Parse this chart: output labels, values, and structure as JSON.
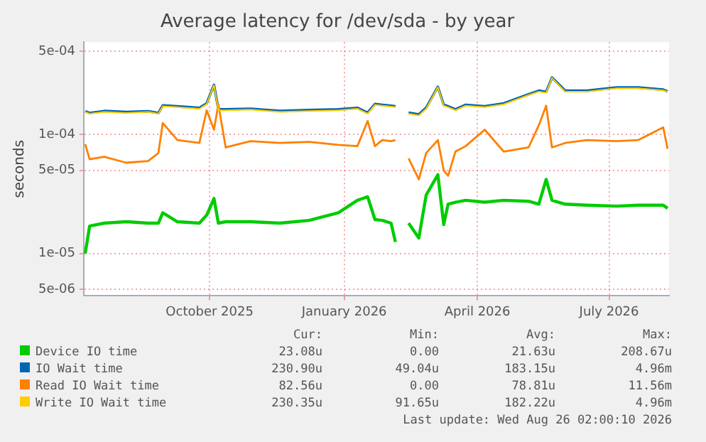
{
  "chart_data": {
    "type": "line",
    "title": "Average latency for /dev/sda - by year",
    "ylabel": "seconds",
    "log": "y",
    "grid": true,
    "legend": "bottom",
    "line_style": "solid",
    "xlim": [
      "2025-07-22",
      "2026-08-26"
    ],
    "xticks": [
      {
        "value": "2025-10-16",
        "label": "October 2025"
      },
      {
        "value": "2026-01-16",
        "label": "January 2026"
      },
      {
        "value": "2026-04-17",
        "label": "April 2026"
      },
      {
        "value": "2026-07-16",
        "label": "July 2026"
      }
    ],
    "ylim": [
      4.4e-06,
      0.0006
    ],
    "yticks": [
      {
        "value": 5e-06,
        "label": "5e-06"
      },
      {
        "value": 1e-05,
        "label": "1e-05"
      },
      {
        "value": 5e-05,
        "label": "5e-05"
      },
      {
        "value": 0.0001,
        "label": "1e-04"
      },
      {
        "value": 0.0005,
        "label": "5e-04"
      }
    ],
    "x": [
      "2025-07-23",
      "2025-07-26",
      "2025-08-05",
      "2025-08-20",
      "2025-09-04",
      "2025-09-11",
      "2025-09-14",
      "2025-09-24",
      "2025-10-09",
      "2025-10-14",
      "2025-10-19",
      "2025-10-22",
      "2025-10-27",
      "2025-11-13",
      "2025-12-03",
      "2025-12-23",
      "2026-01-12",
      "2026-01-25",
      "2026-02-01",
      "2026-02-06",
      "2026-02-11",
      "2026-02-17",
      "2026-02-20",
      "2026-02-24",
      "2026-03-01",
      "2026-03-08",
      "2026-03-13",
      "2026-03-21",
      "2026-03-25",
      "2026-03-28",
      "2026-04-02",
      "2026-04-09",
      "2026-04-22",
      "2026-05-05",
      "2026-05-22",
      "2026-05-29",
      "2026-06-03",
      "2026-06-07",
      "2026-06-16",
      "2026-07-01",
      "2026-07-21",
      "2026-08-05",
      "2026-08-22",
      "2026-08-25"
    ],
    "series": [
      {
        "name": "Device IO time",
        "color": "#00cc00",
        "values": [
          1e-05,
          1.7e-05,
          1.8e-05,
          1.85e-05,
          1.8e-05,
          1.8e-05,
          2.2e-05,
          1.85e-05,
          1.8e-05,
          2.1e-05,
          2.9e-05,
          1.8e-05,
          1.85e-05,
          1.85e-05,
          1.8e-05,
          1.9e-05,
          2.2e-05,
          2.8e-05,
          3e-05,
          1.93e-05,
          1.9e-05,
          1.8e-05,
          1.25e-05,
          null,
          1.8e-05,
          1.35e-05,
          3.1e-05,
          4.6e-05,
          1.75e-05,
          2.6e-05,
          2.7e-05,
          2.8e-05,
          2.7e-05,
          2.8e-05,
          2.75e-05,
          2.6e-05,
          4.2e-05,
          2.8e-05,
          2.6e-05,
          2.55e-05,
          2.5e-05,
          2.55e-05,
          2.55e-05,
          2.4e-05
        ]
      },
      {
        "name": "IO Wait time",
        "color": "#0066b3",
        "values": [
          0.000157,
          0.000152,
          0.000158,
          0.000155,
          0.000157,
          0.000152,
          0.000176,
          0.000173,
          0.000168,
          0.000183,
          0.000262,
          0.000163,
          0.000163,
          0.000165,
          0.000158,
          0.000161,
          0.000163,
          0.000168,
          0.000153,
          0.000181,
          0.000178,
          0.000175,
          0.000173,
          null,
          0.000153,
          0.000148,
          0.000168,
          0.000252,
          0.000178,
          0.000173,
          0.000163,
          0.000178,
          0.000173,
          0.000183,
          0.000218,
          0.000234,
          0.000229,
          0.000302,
          0.000234,
          0.000234,
          0.000249,
          0.000249,
          0.000239,
          0.000231
        ]
      },
      {
        "name": "Read IO Wait time",
        "color": "#ff8000",
        "values": [
          8.3e-05,
          6.2e-05,
          6.5e-05,
          5.8e-05,
          6e-05,
          7e-05,
          0.000125,
          9e-05,
          8.5e-05,
          0.00016,
          0.00011,
          0.00018,
          7.8e-05,
          8.8e-05,
          8.5e-05,
          8.7e-05,
          8.2e-05,
          8e-05,
          0.00013,
          8e-05,
          9e-05,
          8.8e-05,
          9e-05,
          null,
          6.3e-05,
          4.2e-05,
          7e-05,
          9e-05,
          5e-05,
          4.5e-05,
          7.2e-05,
          8e-05,
          0.00011,
          7.2e-05,
          7.8e-05,
          0.00012,
          0.000175,
          7.8e-05,
          8.5e-05,
          9e-05,
          8.8e-05,
          9e-05,
          0.000115,
          7.6e-05
        ]
      },
      {
        "name": "Write IO Wait time",
        "color": "#ffcc00",
        "values": [
          0.000155,
          0.00015,
          0.000155,
          0.000152,
          0.000155,
          0.00015,
          0.000173,
          0.00017,
          0.000165,
          0.00018,
          0.00026,
          0.00016,
          0.00016,
          0.000162,
          0.000155,
          0.000158,
          0.00016,
          0.000165,
          0.00015,
          0.000178,
          0.000175,
          0.000172,
          0.00017,
          null,
          0.00015,
          0.000145,
          0.000165,
          0.00025,
          0.000175,
          0.00017,
          0.00016,
          0.000175,
          0.00017,
          0.00018,
          0.000215,
          0.00023,
          0.000225,
          0.0003,
          0.00023,
          0.00023,
          0.000245,
          0.000245,
          0.000235,
          0.00023
        ]
      }
    ],
    "annotations": [
      "Cur:",
      "Min:",
      "Avg:",
      "Max:",
      "23.08u",
      "0.00",
      "21.63u",
      "208.67u",
      "230.90u",
      "49.04u",
      "183.15u",
      "4.96m",
      "82.56u",
      "0.00",
      "78.81u",
      "11.56m",
      "230.35u",
      "91.65u",
      "182.22u",
      "4.96m",
      "Last update: Wed Aug 26 02:00:10 2026"
    ]
  }
}
